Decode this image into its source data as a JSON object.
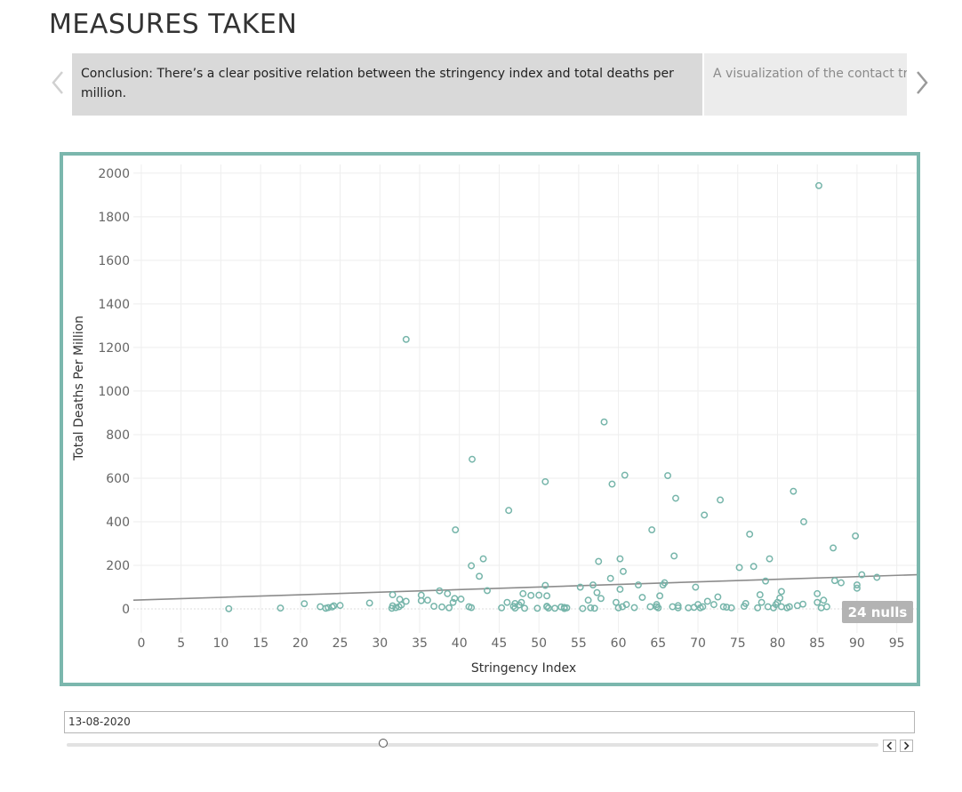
{
  "page": {
    "title": "MEASURES TAKEN"
  },
  "story": {
    "points": [
      {
        "text": "Conclusion: There’s a clear positive relation between the stringency index and total deaths per million."
      },
      {
        "text": "A visualization of the contact tr"
      }
    ]
  },
  "filter": {
    "date_value": "13-08-2020",
    "slider_position": 0.39
  },
  "colors": {
    "marker": "#76b5aa",
    "frame": "#7bb7ad",
    "trend": "#8c8c8c",
    "nulls_badge": "#b3b3b3"
  },
  "icons": {
    "prev": "chevron-left-icon",
    "next": "chevron-right-icon"
  },
  "chart_data": {
    "type": "scatter",
    "title": "",
    "xlabel": "Stringency Index",
    "ylabel": "Total Deaths Per Million",
    "xlim": [
      -1,
      97.5
    ],
    "ylim": [
      -110,
      2040
    ],
    "xticks": [
      0,
      5,
      10,
      15,
      20,
      25,
      30,
      35,
      40,
      45,
      50,
      55,
      60,
      65,
      70,
      75,
      80,
      85,
      90,
      95
    ],
    "yticks": [
      0,
      200,
      400,
      600,
      800,
      1000,
      1200,
      1400,
      1600,
      1800,
      2000
    ],
    "grid": true,
    "nulls_label": "24 nulls",
    "trend_line": {
      "x": [
        -1,
        97.5
      ],
      "y": [
        40,
        157
      ]
    },
    "points": [
      [
        11,
        1
      ],
      [
        17.5,
        4
      ],
      [
        20.5,
        24
      ],
      [
        22.5,
        10
      ],
      [
        23.2,
        3
      ],
      [
        23.5,
        6
      ],
      [
        24,
        9
      ],
      [
        24.2,
        14
      ],
      [
        25,
        16
      ],
      [
        28.7,
        27
      ],
      [
        31.5,
        3
      ],
      [
        31.6,
        14
      ],
      [
        31.6,
        65
      ],
      [
        32,
        6
      ],
      [
        32.4,
        10
      ],
      [
        32.5,
        44
      ],
      [
        32.7,
        18
      ],
      [
        33.3,
        35
      ],
      [
        33.3,
        1237
      ],
      [
        35.2,
        38
      ],
      [
        35.2,
        63
      ],
      [
        36,
        40
      ],
      [
        36.8,
        12
      ],
      [
        37.5,
        83
      ],
      [
        37.8,
        9
      ],
      [
        38.5,
        70
      ],
      [
        38.7,
        5
      ],
      [
        39.2,
        30
      ],
      [
        39.4,
        48
      ],
      [
        39.5,
        363
      ],
      [
        40.2,
        45
      ],
      [
        41.2,
        10
      ],
      [
        41.5,
        6
      ],
      [
        41.5,
        198
      ],
      [
        41.6,
        687
      ],
      [
        42.5,
        150
      ],
      [
        43,
        230
      ],
      [
        43.5,
        84
      ],
      [
        45.3,
        5
      ],
      [
        46,
        30
      ],
      [
        46.2,
        452
      ],
      [
        46.8,
        12
      ],
      [
        47,
        4
      ],
      [
        47,
        25
      ],
      [
        47.5,
        18
      ],
      [
        47.8,
        30
      ],
      [
        48,
        70
      ],
      [
        48.2,
        3
      ],
      [
        49,
        62
      ],
      [
        49.8,
        3
      ],
      [
        50,
        63
      ],
      [
        50.8,
        108
      ],
      [
        50.8,
        584
      ],
      [
        51,
        10
      ],
      [
        51,
        12
      ],
      [
        51,
        60
      ],
      [
        51.2,
        4
      ],
      [
        52,
        3
      ],
      [
        52.8,
        9
      ],
      [
        53.2,
        2
      ],
      [
        53.2,
        7
      ],
      [
        53.5,
        5
      ],
      [
        55.2,
        100
      ],
      [
        55.5,
        2
      ],
      [
        56.2,
        40
      ],
      [
        56.5,
        5
      ],
      [
        56.8,
        110
      ],
      [
        57,
        3
      ],
      [
        57.3,
        75
      ],
      [
        57.5,
        218
      ],
      [
        57.8,
        48
      ],
      [
        58.2,
        858
      ],
      [
        59,
        140
      ],
      [
        59.2,
        573
      ],
      [
        59.7,
        30
      ],
      [
        60,
        5
      ],
      [
        60.2,
        90
      ],
      [
        60.2,
        230
      ],
      [
        60.5,
        10
      ],
      [
        60.6,
        172
      ],
      [
        60.8,
        614
      ],
      [
        61,
        20
      ],
      [
        62,
        6
      ],
      [
        62.5,
        110
      ],
      [
        63,
        53
      ],
      [
        64,
        10
      ],
      [
        64.2,
        363
      ],
      [
        64.8,
        10
      ],
      [
        64.8,
        20
      ],
      [
        65,
        5
      ],
      [
        65.2,
        60
      ],
      [
        65.6,
        110
      ],
      [
        65.8,
        120
      ],
      [
        66.2,
        612
      ],
      [
        66.8,
        10
      ],
      [
        67,
        243
      ],
      [
        67.2,
        508
      ],
      [
        67.5,
        5
      ],
      [
        67.5,
        15
      ],
      [
        68.8,
        5
      ],
      [
        69.5,
        7
      ],
      [
        69.7,
        100
      ],
      [
        70,
        20
      ],
      [
        70.3,
        5
      ],
      [
        70.6,
        10
      ],
      [
        70.8,
        431
      ],
      [
        71.2,
        35
      ],
      [
        72,
        20
      ],
      [
        72.5,
        55
      ],
      [
        72.8,
        500
      ],
      [
        73.2,
        10
      ],
      [
        73.6,
        8
      ],
      [
        74.2,
        5
      ],
      [
        75.2,
        190
      ],
      [
        75.8,
        12
      ],
      [
        76,
        25
      ],
      [
        76.5,
        343
      ],
      [
        77,
        195
      ],
      [
        77.5,
        5
      ],
      [
        77.8,
        65
      ],
      [
        78,
        30
      ],
      [
        78.5,
        128
      ],
      [
        78.8,
        10
      ],
      [
        79,
        230
      ],
      [
        79.5,
        5
      ],
      [
        79.8,
        20
      ],
      [
        80,
        30
      ],
      [
        80.3,
        50
      ],
      [
        80.5,
        10
      ],
      [
        80.5,
        80
      ],
      [
        81.2,
        5
      ],
      [
        81.5,
        10
      ],
      [
        82,
        540
      ],
      [
        82.5,
        15
      ],
      [
        83.2,
        22
      ],
      [
        83.3,
        400
      ],
      [
        85,
        30
      ],
      [
        85,
        70
      ],
      [
        85.2,
        1943
      ],
      [
        85.5,
        5
      ],
      [
        85.8,
        40
      ],
      [
        86.2,
        10
      ],
      [
        87,
        280
      ],
      [
        87.2,
        130
      ],
      [
        88,
        120
      ],
      [
        89.8,
        335
      ],
      [
        90,
        20
      ],
      [
        90,
        95
      ],
      [
        90,
        110
      ],
      [
        90.6,
        5
      ],
      [
        90.6,
        157
      ],
      [
        92.5,
        145
      ]
    ]
  }
}
